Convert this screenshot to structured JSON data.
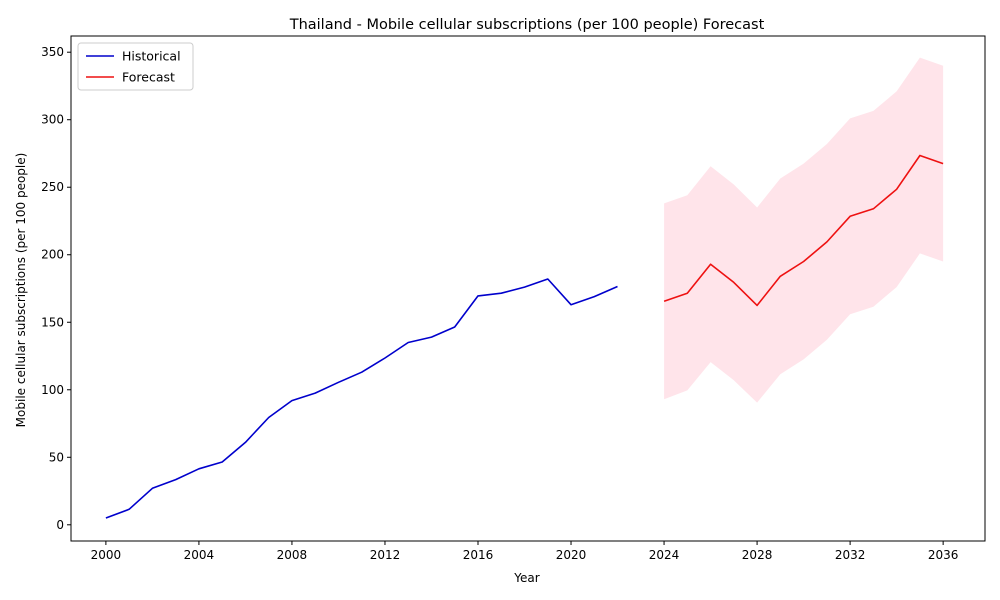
{
  "chart_data": {
    "type": "line",
    "title": "Thailand - Mobile cellular subscriptions (per 100 people) Forecast",
    "xlabel": "Year",
    "ylabel": "Mobile cellular subscriptions (per 100 people)",
    "xlim": [
      1998.5,
      2037.8
    ],
    "ylim": [
      -12,
      362
    ],
    "xticks": [
      2000,
      2004,
      2008,
      2012,
      2016,
      2020,
      2024,
      2028,
      2032,
      2036
    ],
    "yticks": [
      0,
      50,
      100,
      150,
      200,
      250,
      300,
      350
    ],
    "grid": false,
    "legend_position": "top-left",
    "series": [
      {
        "name": "Historical",
        "color": "#0000cc",
        "x": [
          2000,
          2001,
          2002,
          2003,
          2004,
          2005,
          2006,
          2007,
          2008,
          2009,
          2010,
          2011,
          2012,
          2013,
          2014,
          2015,
          2016,
          2017,
          2018,
          2019,
          2020,
          2021,
          2022
        ],
        "y": [
          5,
          11.5,
          27,
          33.5,
          41.5,
          46.5,
          61,
          79.5,
          92,
          97.5,
          105.5,
          113,
          123.5,
          135,
          139,
          146.5,
          169.5,
          171.5,
          176,
          182,
          163,
          169,
          176.5
        ]
      },
      {
        "name": "Forecast",
        "color": "#ee1111",
        "x": [
          2024,
          2025,
          2026,
          2027,
          2028,
          2029,
          2030,
          2031,
          2032,
          2033,
          2034,
          2035,
          2036
        ],
        "y": [
          165.5,
          171.5,
          193,
          179.5,
          162.5,
          184,
          195,
          209.5,
          228.5,
          234,
          248.5,
          273.5,
          267.5
        ]
      }
    ],
    "confidence_band": {
      "color": "#ffe4ea",
      "x": [
        2024,
        2025,
        2026,
        2027,
        2028,
        2029,
        2030,
        2031,
        2032,
        2033,
        2034,
        2035,
        2036
      ],
      "lower": [
        93,
        99.5,
        120.5,
        107,
        90.5,
        111.5,
        122.5,
        137,
        156,
        161.5,
        176,
        201,
        195
      ],
      "upper": [
        238,
        244,
        265.5,
        252,
        235,
        256.5,
        267.5,
        282,
        301,
        306.5,
        321,
        346,
        340
      ]
    }
  }
}
